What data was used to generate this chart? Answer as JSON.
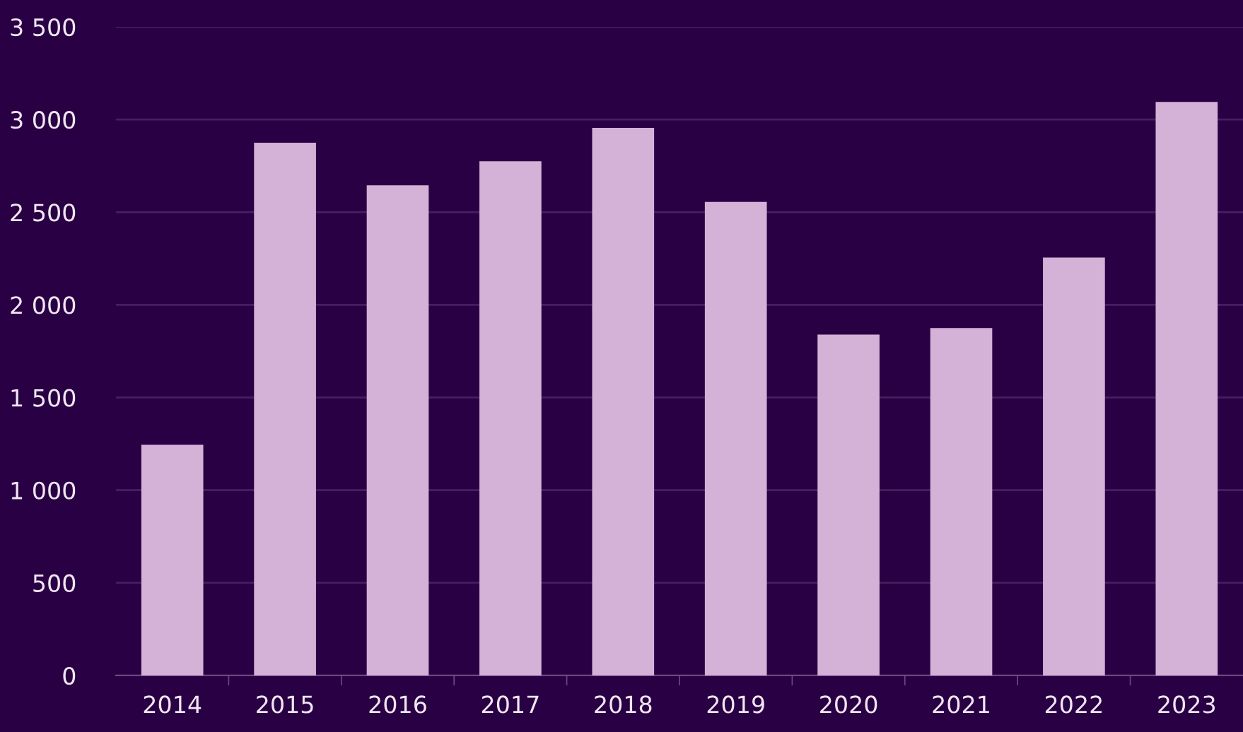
{
  "chart_data": {
    "type": "bar",
    "categories": [
      "2014",
      "2015",
      "2016",
      "2017",
      "2018",
      "2019",
      "2020",
      "2021",
      "2022",
      "2023"
    ],
    "values": [
      1245,
      2875,
      2645,
      2775,
      2955,
      2555,
      1840,
      1875,
      2255,
      3095
    ],
    "color": "#d4b1d6",
    "ylim": [
      0,
      3500
    ],
    "yticks": [
      0,
      500,
      {
        "value": 1000,
        "label": "1 000"
      },
      {
        "value": 1500,
        "label": "1 500"
      },
      {
        "value": 2000,
        "label": "2 000"
      },
      {
        "value": 2500,
        "label": "2 500"
      },
      {
        "value": 3000,
        "label": "3 000"
      },
      {
        "value": 3500,
        "label": "3 500"
      }
    ],
    "grid": "y"
  }
}
